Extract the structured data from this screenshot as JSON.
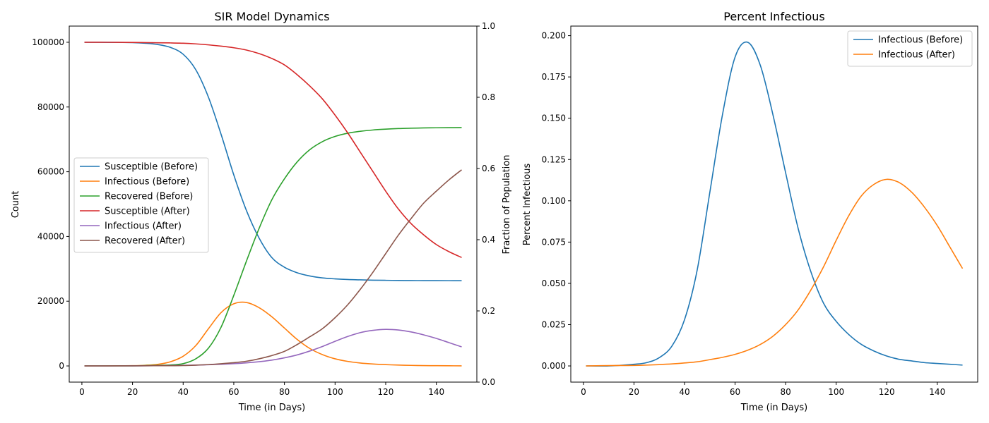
{
  "colors": {
    "tab_blue": "#1f77b4",
    "tab_orange": "#ff7f0e",
    "tab_green": "#2ca02c",
    "tab_red": "#d62728",
    "tab_purple": "#9467bd",
    "tab_brown": "#8c564b"
  },
  "chart_data": [
    {
      "type": "line",
      "title": "SIR Model Dynamics",
      "xlabel": "Time (in Days)",
      "ylabel": "Count",
      "y2label": "Fraction of Population",
      "xlim": [
        -5,
        156
      ],
      "ylim": [
        -5000,
        105000
      ],
      "y2lim": [
        0,
        1
      ],
      "xticks": [
        0,
        20,
        40,
        60,
        80,
        100,
        120,
        140
      ],
      "yticks": [
        0,
        20000,
        40000,
        60000,
        80000,
        100000
      ],
      "y2ticks": [
        0.0,
        0.2,
        0.4,
        0.6,
        0.8,
        1.0
      ],
      "legend_position": "center-left",
      "grid": false,
      "x": [
        1,
        10,
        20,
        25,
        30,
        35,
        40,
        45,
        50,
        55,
        60,
        65,
        70,
        75,
        80,
        85,
        90,
        95,
        100,
        105,
        110,
        115,
        120,
        125,
        130,
        135,
        140,
        145,
        150
      ],
      "series": [
        {
          "name": "Susceptible (Before)",
          "color": "#1f77b4",
          "values": [
            99995,
            99985,
            99900,
            99700,
            99300,
            98400,
            96300,
            91500,
            83000,
            71500,
            59000,
            48000,
            39500,
            33500,
            30500,
            28800,
            27800,
            27200,
            26900,
            26700,
            26600,
            26500,
            26450,
            26400,
            26380,
            26360,
            26350,
            26340,
            26330
          ]
        },
        {
          "name": "Infectious (Before)",
          "color": "#ff7f0e",
          "values": [
            5,
            15,
            70,
            200,
            500,
            1300,
            3000,
            6300,
            11500,
            16500,
            19200,
            19600,
            18000,
            15200,
            11700,
            8200,
            5400,
            3500,
            2200,
            1400,
            900,
            600,
            400,
            260,
            170,
            110,
            70,
            45,
            30
          ]
        },
        {
          "name": "Recovered (Before)",
          "color": "#2ca02c",
          "values": [
            0,
            0,
            30,
            100,
            200,
            300,
            700,
            2200,
            5500,
            12000,
            21800,
            32400,
            42500,
            51300,
            57800,
            63000,
            66800,
            69300,
            70900,
            71900,
            72500,
            72900,
            73150,
            73340,
            73450,
            73530,
            73580,
            73615,
            73640
          ]
        },
        {
          "name": "Susceptible (After)",
          "color": "#d62728",
          "values": [
            99995,
            99990,
            99950,
            99900,
            99850,
            99800,
            99700,
            99500,
            99200,
            98800,
            98300,
            97600,
            96500,
            95000,
            93000,
            90000,
            86500,
            82500,
            77500,
            72000,
            66000,
            60000,
            54000,
            48500,
            44000,
            40500,
            37500,
            35300,
            33500
          ]
        },
        {
          "name": "Infectious (After)",
          "color": "#9467bd",
          "values": [
            5,
            5,
            20,
            40,
            80,
            120,
            180,
            250,
            380,
            520,
            700,
            950,
            1300,
            1800,
            2500,
            3400,
            4600,
            6000,
            7600,
            9100,
            10300,
            11000,
            11300,
            11100,
            10500,
            9600,
            8500,
            7200,
            5900
          ]
        },
        {
          "name": "Recovered (After)",
          "color": "#8c564b",
          "values": [
            0,
            5,
            30,
            60,
            70,
            80,
            120,
            250,
            420,
            680,
            1000,
            1450,
            2200,
            3200,
            4500,
            6600,
            9000,
            11500,
            14900,
            18900,
            23700,
            29000,
            34700,
            40400,
            45500,
            50300,
            54000,
            57500,
            60600
          ]
        }
      ]
    },
    {
      "type": "line",
      "title": "Percent Infectious",
      "xlabel": "Time (in Days)",
      "ylabel": "Percent Infectious",
      "xlim": [
        -5,
        156
      ],
      "ylim": [
        -0.0098,
        0.2058
      ],
      "xticks": [
        0,
        20,
        40,
        60,
        80,
        100,
        120,
        140
      ],
      "yticks": [
        0.0,
        0.025,
        0.05,
        0.075,
        0.1,
        0.125,
        0.15,
        0.175,
        0.2
      ],
      "ytick_labels": [
        "0.000",
        "0.025",
        "0.050",
        "0.075",
        "0.100",
        "0.125",
        "0.150",
        "0.175",
        "0.200"
      ],
      "legend_position": "top-right",
      "grid": false,
      "x": [
        1,
        10,
        20,
        25,
        30,
        35,
        40,
        45,
        50,
        55,
        60,
        65,
        70,
        75,
        80,
        85,
        90,
        95,
        100,
        105,
        110,
        115,
        120,
        125,
        130,
        135,
        140,
        145,
        150
      ],
      "series": [
        {
          "name": "Infectious (Before)",
          "color": "#1f77b4",
          "values": [
            0.0,
            0.0,
            0.001,
            0.002,
            0.005,
            0.012,
            0.028,
            0.058,
            0.105,
            0.152,
            0.187,
            0.196,
            0.182,
            0.152,
            0.117,
            0.083,
            0.057,
            0.038,
            0.027,
            0.019,
            0.013,
            0.009,
            0.006,
            0.004,
            0.003,
            0.002,
            0.0015,
            0.001,
            0.0005
          ]
        },
        {
          "name": "Infectious (After)",
          "color": "#ff7f0e",
          "values": [
            0.0,
            0.0002,
            0.0003,
            0.0005,
            0.0008,
            0.0012,
            0.0018,
            0.0025,
            0.0038,
            0.0052,
            0.007,
            0.0095,
            0.013,
            0.018,
            0.025,
            0.034,
            0.046,
            0.06,
            0.076,
            0.091,
            0.103,
            0.11,
            0.113,
            0.111,
            0.105,
            0.096,
            0.085,
            0.072,
            0.059
          ]
        }
      ]
    }
  ]
}
